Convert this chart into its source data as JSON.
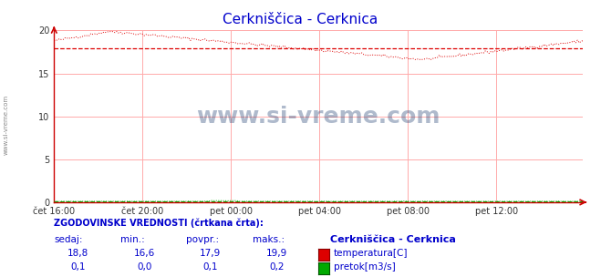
{
  "title": "Cerkniščica - Cerknica",
  "title_color": "#0000cc",
  "bg_color": "#ffffff",
  "plot_bg_color": "#ffffff",
  "grid_color": "#ffaaaa",
  "x_labels": [
    "čet 16:00",
    "čet 20:00",
    "pet 00:00",
    "pet 04:00",
    "pet 08:00",
    "pet 12:00"
  ],
  "x_ticks_pos": [
    0,
    48,
    96,
    144,
    192,
    240
  ],
  "total_points": 288,
  "ylim": [
    0,
    20
  ],
  "yticks": [
    0,
    5,
    10,
    15,
    20
  ],
  "temp_color": "#dd0000",
  "flow_color": "#00aa00",
  "temp_sedaj": 18.8,
  "temp_min": 16.6,
  "temp_povpr": 17.9,
  "temp_maks": 19.9,
  "flow_sedaj": 0.1,
  "flow_min": 0.0,
  "flow_povpr": 0.1,
  "flow_maks": 0.2,
  "watermark": "www.si-vreme.com",
  "watermark_color": "#1a3a6e",
  "label_color": "#0000cc",
  "sidebar_text": "www.si-vreme.com",
  "sidebar_color": "#888888",
  "station_name": "Cerkniščica - Cerknica",
  "legend_header": "ZGODOVINSKE VREDNOSTI (črtkana črta):",
  "col_headers": [
    "sedaj:",
    "min.:",
    "povpr.:",
    "maks.:"
  ],
  "temp_label": "temperatura[C]",
  "flow_label": "pretok[m3/s]"
}
